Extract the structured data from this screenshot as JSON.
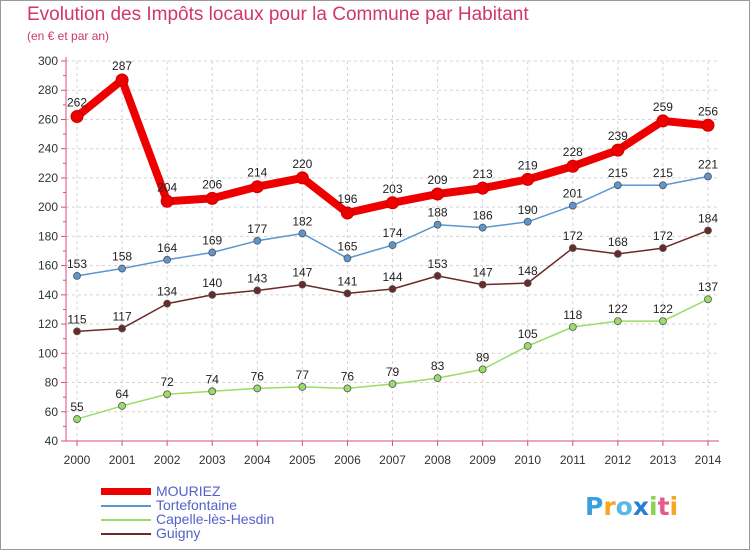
{
  "chart_data": {
    "type": "line",
    "title": "Evolution des Impôts locaux pour la Commune par Habitant",
    "subtitle": "(en € et par an)",
    "xlabel": "",
    "ylabel": "",
    "categories": [
      "2000",
      "2001",
      "2002",
      "2003",
      "2004",
      "2005",
      "2006",
      "2007",
      "2008",
      "2009",
      "2010",
      "2011",
      "2012",
      "2013",
      "2014"
    ],
    "yticks": [
      40,
      60,
      80,
      100,
      120,
      140,
      160,
      180,
      200,
      220,
      240,
      260,
      280,
      300
    ],
    "ylim": [
      40,
      300
    ],
    "grid": true,
    "legend_position": "bottom-left",
    "series": [
      {
        "name": "MOURIEZ",
        "color": "#ee0000",
        "values": [
          262,
          287,
          204,
          206,
          214,
          220,
          196,
          203,
          209,
          213,
          219,
          228,
          239,
          259,
          256
        ]
      },
      {
        "name": "Tortefontaine",
        "color": "#5b96cf",
        "values": [
          153,
          158,
          164,
          169,
          177,
          182,
          165,
          174,
          188,
          186,
          190,
          201,
          215,
          215,
          221
        ]
      },
      {
        "name": "Capelle-lès-Hesdin",
        "color": "#99dd66",
        "values": [
          55,
          64,
          72,
          74,
          76,
          77,
          76,
          79,
          83,
          89,
          105,
          118,
          122,
          122,
          137
        ]
      },
      {
        "name": "Guigny",
        "color": "#6b2a2a",
        "values": [
          115,
          117,
          134,
          140,
          143,
          147,
          141,
          144,
          153,
          147,
          148,
          172,
          168,
          172,
          184
        ]
      }
    ]
  },
  "logo": {
    "text": "Proxiti"
  }
}
